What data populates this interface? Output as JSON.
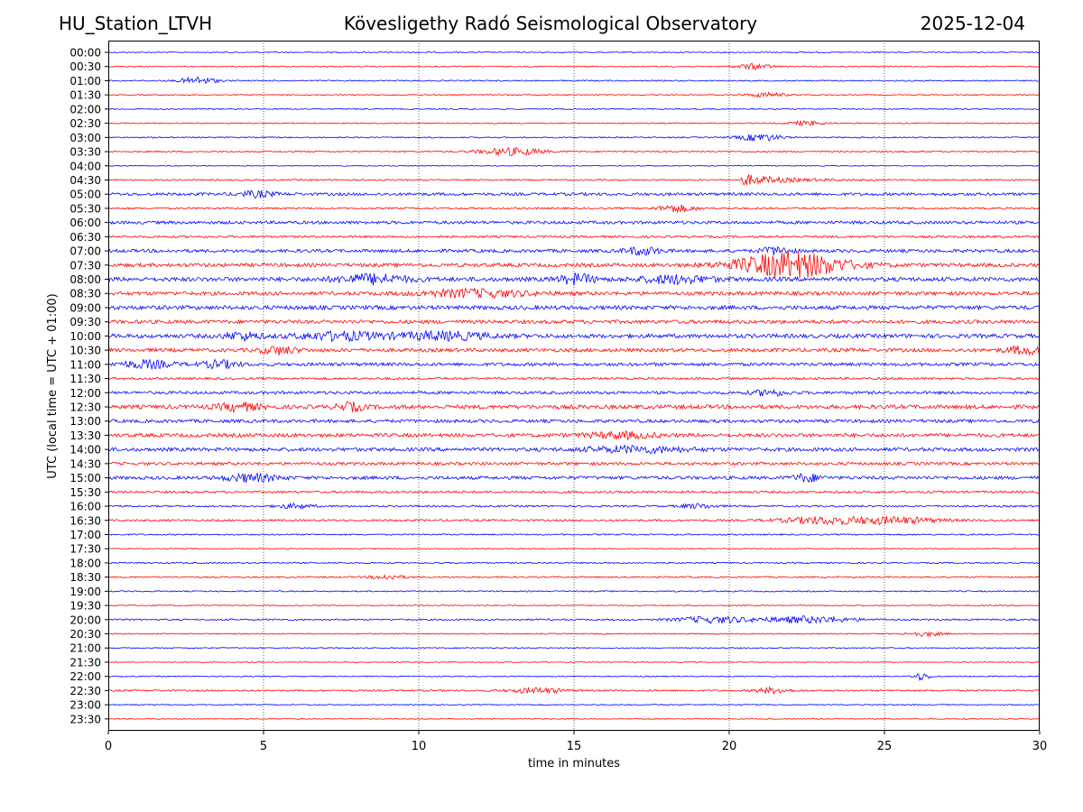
{
  "header": {
    "station": "HU_Station_LTVH",
    "observatory": "Kövesligethy Radó Seismological Observatory",
    "date": "2025-12-04"
  },
  "chart_data": {
    "type": "line",
    "title": "Kövesligethy Radó Seismological Observatory",
    "xlabel": "time in minutes",
    "ylabel": "UTC (local time = UTC + 01:00)",
    "xlim": [
      0,
      30
    ],
    "xticks": [
      0,
      5,
      10,
      15,
      20,
      25,
      30
    ],
    "vertical_gridlines_at": [
      5,
      10,
      15,
      20,
      25
    ],
    "colors": {
      "even": "#0000ff",
      "odd": "#ff0000"
    },
    "rows": [
      {
        "label": "00:00",
        "amp": 0.6,
        "events": []
      },
      {
        "label": "00:30",
        "amp": 0.6,
        "events": [
          [
            20.8,
            3.0,
            1.0
          ]
        ]
      },
      {
        "label": "01:00",
        "amp": 0.7,
        "events": [
          [
            2.9,
            4.0,
            1.0
          ]
        ]
      },
      {
        "label": "01:30",
        "amp": 0.6,
        "events": [
          [
            21.2,
            2.5,
            1.0
          ]
        ]
      },
      {
        "label": "02:00",
        "amp": 0.6,
        "events": []
      },
      {
        "label": "02:30",
        "amp": 0.6,
        "events": [
          [
            22.5,
            2.5,
            1.0
          ]
        ]
      },
      {
        "label": "03:00",
        "amp": 0.7,
        "events": [
          [
            21.0,
            4.0,
            1.2
          ]
        ]
      },
      {
        "label": "03:30",
        "amp": 0.8,
        "events": [
          [
            13.0,
            4.0,
            1.8
          ]
        ]
      },
      {
        "label": "04:00",
        "amp": 0.5,
        "events": []
      },
      {
        "label": "04:30",
        "amp": 0.8,
        "events": [
          [
            20.5,
            6.0,
            0.2
          ]
        ]
      },
      {
        "label": "05:00",
        "amp": 1.6,
        "events": [
          [
            4.8,
            3.0,
            1.0
          ]
        ]
      },
      {
        "label": "05:30",
        "amp": 1.0,
        "events": [
          [
            18.3,
            4.0,
            1.0
          ]
        ]
      },
      {
        "label": "06:00",
        "amp": 1.7,
        "events": []
      },
      {
        "label": "06:30",
        "amp": 1.2,
        "events": []
      },
      {
        "label": "07:00",
        "amp": 1.8,
        "events": [
          [
            17.2,
            4.0,
            1.0
          ],
          [
            21.5,
            4.0,
            0.8
          ]
        ]
      },
      {
        "label": "07:30",
        "amp": 2.0,
        "events": [
          [
            22.0,
            14.0,
            3.0
          ]
        ]
      },
      {
        "label": "08:00",
        "amp": 2.3,
        "events": [
          [
            8.5,
            5.0,
            2.0
          ],
          [
            15.1,
            5.0,
            1.0
          ],
          [
            18.3,
            4.0,
            2.0
          ]
        ]
      },
      {
        "label": "08:30",
        "amp": 2.0,
        "events": [
          [
            11.8,
            4.0,
            3.0
          ]
        ]
      },
      {
        "label": "09:00",
        "amp": 2.2,
        "events": []
      },
      {
        "label": "09:30",
        "amp": 2.0,
        "events": []
      },
      {
        "label": "10:00",
        "amp": 2.2,
        "events": [
          [
            4.3,
            4.0,
            1.0
          ],
          [
            7.5,
            4.0,
            2.5
          ],
          [
            10.8,
            4.0,
            2.5
          ]
        ]
      },
      {
        "label": "10:30",
        "amp": 2.0,
        "events": [
          [
            5.5,
            4.0,
            1.0
          ],
          [
            29.5,
            4.0,
            1.0
          ]
        ]
      },
      {
        "label": "11:00",
        "amp": 1.8,
        "events": [
          [
            1.2,
            4.0,
            1.5
          ],
          [
            3.6,
            4.0,
            1.0
          ]
        ]
      },
      {
        "label": "11:30",
        "amp": 1.2,
        "events": []
      },
      {
        "label": "12:00",
        "amp": 1.6,
        "events": [
          [
            21.3,
            3.0,
            1.0
          ]
        ]
      },
      {
        "label": "12:30",
        "amp": 2.2,
        "events": [
          [
            4.2,
            4.0,
            1.2
          ],
          [
            7.8,
            4.0,
            0.8
          ]
        ]
      },
      {
        "label": "13:00",
        "amp": 1.8,
        "events": []
      },
      {
        "label": "13:30",
        "amp": 2.0,
        "events": [
          [
            16.5,
            3.0,
            2.0
          ]
        ]
      },
      {
        "label": "14:00",
        "amp": 2.0,
        "events": [
          [
            17.0,
            3.0,
            3.0
          ]
        ]
      },
      {
        "label": "14:30",
        "amp": 1.6,
        "events": []
      },
      {
        "label": "15:00",
        "amp": 1.8,
        "events": [
          [
            4.6,
            4.0,
            1.5
          ],
          [
            22.5,
            4.0,
            0.8
          ]
        ]
      },
      {
        "label": "15:30",
        "amp": 1.2,
        "events": []
      },
      {
        "label": "16:00",
        "amp": 1.0,
        "events": [
          [
            6.0,
            2.5,
            1.0
          ],
          [
            19.0,
            2.5,
            1.0
          ]
        ]
      },
      {
        "label": "16:30",
        "amp": 1.1,
        "events": [
          [
            23.0,
            3.5,
            2.5
          ],
          [
            25.3,
            3.5,
            2.5
          ]
        ]
      },
      {
        "label": "17:00",
        "amp": 0.8,
        "events": []
      },
      {
        "label": "17:30",
        "amp": 0.6,
        "events": []
      },
      {
        "label": "18:00",
        "amp": 0.8,
        "events": []
      },
      {
        "label": "18:30",
        "amp": 0.8,
        "events": [
          [
            9.0,
            2.5,
            1.0
          ]
        ]
      },
      {
        "label": "19:00",
        "amp": 0.7,
        "events": []
      },
      {
        "label": "19:30",
        "amp": 0.6,
        "events": []
      },
      {
        "label": "20:00",
        "amp": 0.9,
        "events": [
          [
            19.5,
            3.5,
            2.0
          ],
          [
            22.5,
            3.5,
            2.5
          ]
        ]
      },
      {
        "label": "20:30",
        "amp": 0.6,
        "events": [
          [
            26.3,
            2.5,
            1.0
          ]
        ]
      },
      {
        "label": "21:00",
        "amp": 0.6,
        "events": []
      },
      {
        "label": "21:30",
        "amp": 0.5,
        "events": []
      },
      {
        "label": "22:00",
        "amp": 0.6,
        "events": [
          [
            26.2,
            4.0,
            0.5
          ]
        ]
      },
      {
        "label": "22:30",
        "amp": 0.9,
        "events": [
          [
            13.8,
            3.0,
            1.5
          ],
          [
            21.4,
            3.0,
            1.0
          ]
        ]
      },
      {
        "label": "23:00",
        "amp": 0.6,
        "events": []
      },
      {
        "label": "23:30",
        "amp": 0.5,
        "events": []
      }
    ]
  }
}
